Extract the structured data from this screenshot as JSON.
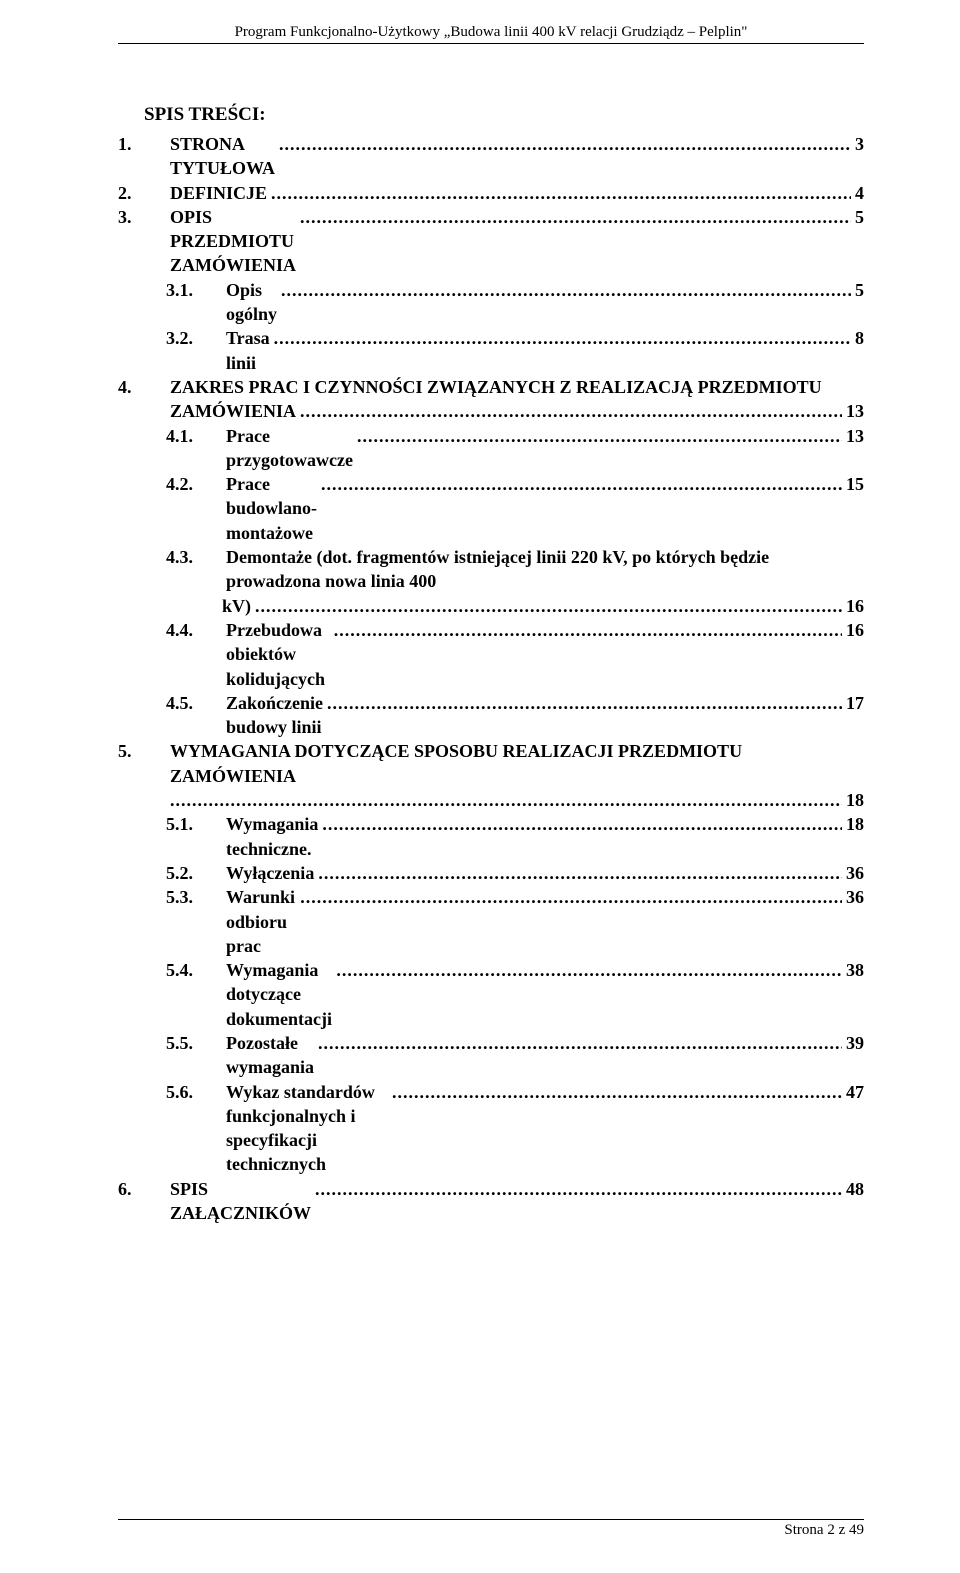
{
  "header": "Program Funkcjonalno-Użytkowy „Budowa linii 400 kV relacji Grudziądz – Pelplin\"",
  "toc_title": "SPIS TREŚCI:",
  "footer": "Strona 2 z 49",
  "entries": [
    {
      "level": 1,
      "num": "1.",
      "label": "STRONA TYTUŁOWA",
      "page": "3",
      "bold": true
    },
    {
      "level": 1,
      "num": "2.",
      "label": "DEFINICJE",
      "page": "4",
      "bold": true
    },
    {
      "level": 1,
      "num": "3.",
      "label": "OPIS PRZEDMIOTU ZAMÓWIENIA",
      "page": "5",
      "bold": true
    },
    {
      "level": 3,
      "num": "3.1.",
      "label": "Opis ogólny",
      "page": "5",
      "bold": true
    },
    {
      "level": 3,
      "num": "3.2.",
      "label": "Trasa linii",
      "page": "8",
      "bold": true
    },
    {
      "level": 1,
      "num": "4.",
      "label": "ZAKRES PRAC I CZYNNOŚCI ZWIĄZANYCH Z REALIZACJĄ PRZEDMIOTU",
      "page": "",
      "bold": true,
      "wrap": true
    },
    {
      "level": 4,
      "num": "",
      "label": "ZAMÓWIENIA",
      "page": "13",
      "bold": true,
      "cont_of_level": 1
    },
    {
      "level": 3,
      "num": "4.1.",
      "label": "Prace przygotowawcze",
      "page": "13",
      "bold": true
    },
    {
      "level": 3,
      "num": "4.2.",
      "label": "Prace budowlano-montażowe",
      "page": "15",
      "bold": true
    },
    {
      "level": 3,
      "num": "4.3.",
      "label": "Demontaże (dot. fragmentów istniejącej linii 220 kV, po których będzie prowadzona nowa linia 400",
      "page": "",
      "bold": true,
      "wrap": true
    },
    {
      "level": 4,
      "num": "",
      "label": "kV)",
      "page": "16",
      "bold": true
    },
    {
      "level": 3,
      "num": "4.4.",
      "label": "Przebudowa obiektów kolidujących",
      "page": "16",
      "bold": true
    },
    {
      "level": 3,
      "num": "4.5.",
      "label": "Zakończenie budowy linii",
      "page": "17",
      "bold": true
    },
    {
      "level": 1,
      "num": "5.",
      "label": "WYMAGANIA DOTYCZĄCE SPOSOBU REALIZACJI PRZEDMIOTU ZAMÓWIENIA",
      "page": "",
      "bold": true,
      "wrap": true
    },
    {
      "level": 4,
      "num": "",
      "label": "",
      "page": "18",
      "bold": true,
      "cont_of_level": 1,
      "leader_only": true
    },
    {
      "level": 3,
      "num": "5.1.",
      "label": "Wymagania techniczne.",
      "page": "18",
      "bold": true
    },
    {
      "level": 3,
      "num": "5.2.",
      "label": "Wyłączenia",
      "page": "36",
      "bold": true
    },
    {
      "level": 3,
      "num": "5.3.",
      "label": "Warunki odbioru prac",
      "page": "36",
      "bold": true
    },
    {
      "level": 3,
      "num": "5.4.",
      "label": "Wymagania dotyczące dokumentacji",
      "page": "38",
      "bold": true
    },
    {
      "level": 3,
      "num": "5.5.",
      "label": "Pozostałe wymagania",
      "page": "39",
      "bold": true
    },
    {
      "level": 3,
      "num": "5.6.",
      "label": "Wykaz standardów funkcjonalnych i specyfikacji technicznych",
      "page": "47",
      "bold": true
    },
    {
      "level": 1,
      "num": "6.",
      "label": "SPIS ZAŁĄCZNIKÓW",
      "page": "48",
      "bold": true
    }
  ]
}
